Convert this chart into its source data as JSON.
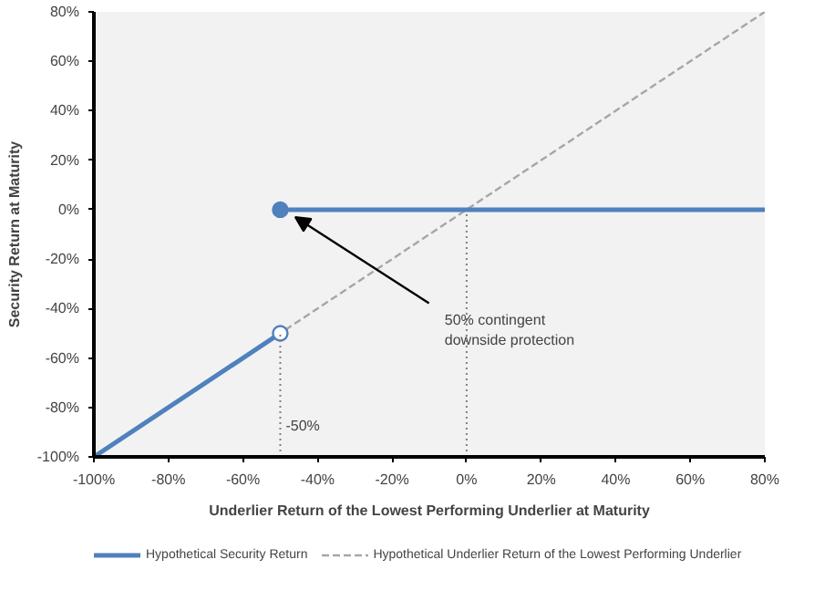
{
  "chart_data": {
    "type": "line",
    "xlabel": "Underlier Return of the Lowest Performing Underlier at Maturity",
    "ylabel": "Security Return at Maturity",
    "xlim": [
      -100,
      80
    ],
    "ylim": [
      -100,
      80
    ],
    "xticks": [
      {
        "value": -100,
        "label": "-100%"
      },
      {
        "value": -80,
        "label": "-80%"
      },
      {
        "value": -60,
        "label": "-60%"
      },
      {
        "value": -40,
        "label": "-40%"
      },
      {
        "value": -20,
        "label": "-20%"
      },
      {
        "value": 0,
        "label": "0%"
      },
      {
        "value": 20,
        "label": "20%"
      },
      {
        "value": 40,
        "label": "40%"
      },
      {
        "value": 60,
        "label": "60%"
      },
      {
        "value": 80,
        "label": "80%"
      }
    ],
    "yticks": [
      {
        "value": -100,
        "label": "-100%"
      },
      {
        "value": -80,
        "label": "-80%"
      },
      {
        "value": -60,
        "label": "-60%"
      },
      {
        "value": -40,
        "label": "-40%"
      },
      {
        "value": -20,
        "label": "-20%"
      },
      {
        "value": 0,
        "label": "0%"
      },
      {
        "value": 20,
        "label": "20%"
      },
      {
        "value": 40,
        "label": "40%"
      },
      {
        "value": 60,
        "label": "60%"
      },
      {
        "value": 80,
        "label": "80%"
      }
    ],
    "grid": false,
    "legend": "bottom",
    "series": [
      {
        "name": "Hypothetical Security Return",
        "type": "line",
        "color": "#4f81bd",
        "line_style": "solid",
        "x": [
          -100,
          -50,
          null,
          -50,
          80
        ],
        "values": [
          -100,
          -50,
          null,
          0,
          0
        ]
      },
      {
        "name": "Hypothetical Underlier Return of the Lowest Performing Underlier",
        "type": "line",
        "color": "#a6a6a6",
        "line_style": "dashed",
        "x": [
          -100,
          80
        ],
        "values": [
          -100,
          80
        ]
      },
      {
        "type": "scatter",
        "marker": "circle",
        "color": "#4f81bd",
        "colors": [
          "#ffffff",
          "#4f81bd"
        ],
        "x": [
          -50,
          -50
        ],
        "values": [
          -50,
          0
        ]
      }
    ],
    "ref_lines": [
      {
        "axis": "x",
        "value": -50,
        "label": "-50%",
        "color": "#808080",
        "line_style": "dotted"
      },
      {
        "axis": "x",
        "value": 0,
        "color": "#808080",
        "line_style": "dotted"
      }
    ],
    "annotations": [
      {
        "text": "50% contingent\ndownside protection",
        "x": -46,
        "y": -3
      }
    ]
  }
}
